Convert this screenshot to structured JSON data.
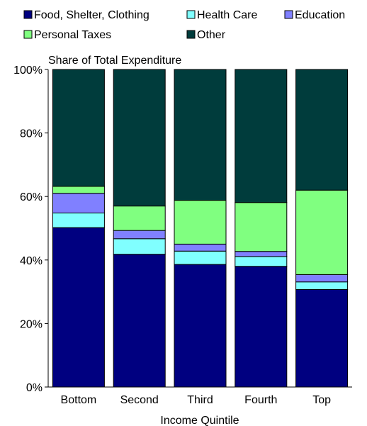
{
  "chart_data": {
    "type": "bar",
    "stacked": true,
    "normalized": true,
    "title": "Share of Total Expenditure",
    "xlabel": "Income Quintile",
    "ylabel": "",
    "ylim": [
      0,
      100
    ],
    "y_ticks": [
      "0%",
      "20%",
      "40%",
      "60%",
      "80%",
      "100%"
    ],
    "categories": [
      "Bottom",
      "Second",
      "Third",
      "Fourth",
      "Top"
    ],
    "grid": false,
    "legend_position": "top",
    "series": [
      {
        "name": "Food, Shelter, Clothing",
        "color": "#000080",
        "values": [
          50.2,
          41.8,
          38.6,
          38.0,
          30.7
        ]
      },
      {
        "name": "Health Care",
        "color": "#80FFFF",
        "values": [
          4.6,
          4.9,
          4.2,
          3.1,
          2.4
        ]
      },
      {
        "name": "Education",
        "color": "#8080FF",
        "values": [
          6.2,
          2.6,
          2.2,
          1.6,
          2.3
        ]
      },
      {
        "name": "Personal Taxes",
        "color": "#80FF80",
        "values": [
          2.2,
          7.7,
          13.8,
          15.4,
          26.6
        ]
      },
      {
        "name": "Other",
        "color": "#003C3C",
        "values": [
          36.8,
          43.0,
          41.2,
          41.9,
          38.0
        ]
      }
    ]
  }
}
